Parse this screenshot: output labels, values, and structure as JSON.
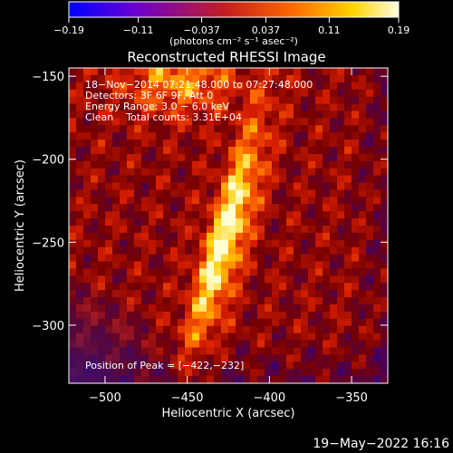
{
  "chart_data": {
    "type": "heatmap",
    "title": "Reconstructed RHESSI Image",
    "xlabel": "Heliocentric X (arcsec)",
    "ylabel": "Heliocentric Y (arcsec)",
    "xlim": [
      -522,
      -328
    ],
    "ylim": [
      -335,
      -145
    ],
    "x_ticks": [
      -500,
      -450,
      -400,
      -350
    ],
    "x_tick_labels": [
      "−500",
      "−450",
      "−400",
      "−350"
    ],
    "y_ticks": [
      -150,
      -200,
      -250,
      -300
    ],
    "y_tick_labels": [
      "−150",
      "−200",
      "−250",
      "−300"
    ],
    "colorbar": {
      "range": [
        -0.19,
        0.19
      ],
      "ticks": [
        -0.19,
        -0.11,
        -0.037,
        0.037,
        0.11,
        0.19
      ],
      "tick_labels": [
        "−0.19",
        "−0.11",
        "−0.037",
        "0.037",
        "0.11",
        "0.19"
      ],
      "unit_label": "(photons cm⁻² s⁻¹ asec⁻²)",
      "colors": [
        "#0000ff",
        "#6a00d0",
        "#c81e1e",
        "#ff6a00",
        "#ffd400",
        "#ffffe0"
      ]
    },
    "annotations": [
      "18−Nov−2014 07:21:48.000 to 07:27:48.000",
      "Detectors: 3F 6F 9F, Att 0",
      "Energy Range: 3.0 − 6.0 keV",
      "Clean    Total counts: 3.31E+04"
    ],
    "peak_label": "Position of Peak = [−422,−232]",
    "peak": [
      -422,
      -232
    ]
  },
  "footer": {
    "date": "19−May−2022 16:16"
  }
}
